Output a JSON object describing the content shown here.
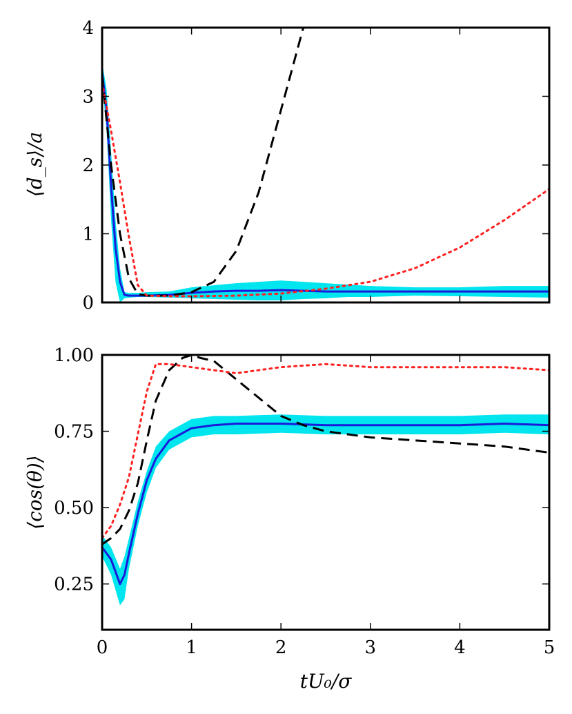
{
  "chart_data": [
    {
      "type": "line",
      "panel": "top",
      "title": "",
      "xlabel": "",
      "ylabel": "⟨d_s⟩/a",
      "xlim": [
        0,
        5
      ],
      "ylim": [
        0,
        4
      ],
      "xticks": [
        0,
        1,
        2,
        3,
        4,
        5
      ],
      "xtick_labels_visible": false,
      "yticks": [
        0,
        1,
        2,
        3,
        4
      ],
      "ytick_labels": [
        "0",
        "1",
        "2",
        "3",
        "4"
      ],
      "band": {
        "name": "spread",
        "color": "#00e5ee",
        "x": [
          0,
          0.05,
          0.1,
          0.15,
          0.2,
          0.25,
          0.3,
          0.4,
          0.5,
          0.75,
          1.0,
          1.25,
          1.5,
          1.75,
          2.0,
          2.25,
          2.5,
          2.75,
          3.0,
          3.5,
          4.0,
          4.5,
          5.0
        ],
        "lower": [
          3.2,
          2.5,
          1.2,
          0.3,
          0.0,
          0.06,
          0.07,
          0.08,
          0.08,
          0.07,
          0.06,
          0.05,
          0.04,
          0.03,
          0.03,
          0.05,
          0.06,
          0.08,
          0.08,
          0.1,
          0.09,
          0.08,
          0.07
        ],
        "upper": [
          3.5,
          3.1,
          2.2,
          1.2,
          0.5,
          0.15,
          0.14,
          0.14,
          0.15,
          0.16,
          0.22,
          0.25,
          0.28,
          0.3,
          0.32,
          0.3,
          0.28,
          0.26,
          0.24,
          0.22,
          0.22,
          0.24,
          0.24
        ]
      },
      "series": [
        {
          "name": "mean",
          "color": "#1a1adb",
          "style": "solid",
          "x": [
            0,
            0.05,
            0.1,
            0.15,
            0.2,
            0.25,
            0.3,
            0.5,
            0.75,
            1.0,
            1.25,
            1.5,
            1.75,
            2.0,
            2.25,
            2.5,
            2.75,
            3.0,
            3.5,
            4.0,
            4.5,
            5.0
          ],
          "values": [
            3.35,
            2.8,
            1.7,
            0.8,
            0.3,
            0.11,
            0.1,
            0.1,
            0.11,
            0.14,
            0.16,
            0.17,
            0.17,
            0.18,
            0.17,
            0.16,
            0.16,
            0.16,
            0.16,
            0.16,
            0.16,
            0.16
          ]
        },
        {
          "name": "dashed",
          "color": "#000000",
          "style": "dashed",
          "x": [
            0,
            0.1,
            0.2,
            0.3,
            0.4,
            0.5,
            0.75,
            1.0,
            1.25,
            1.5,
            1.75,
            2.0,
            2.25
          ],
          "values": [
            3.3,
            2.0,
            1.0,
            0.35,
            0.12,
            0.1,
            0.1,
            0.15,
            0.3,
            0.75,
            1.6,
            2.8,
            4.0
          ]
        },
        {
          "name": "dotted",
          "color": "#ff2020",
          "style": "dotted",
          "x": [
            0,
            0.1,
            0.2,
            0.3,
            0.4,
            0.5,
            0.75,
            1.0,
            1.5,
            2.0,
            2.5,
            3.0,
            3.5,
            4.0,
            4.5,
            5.0
          ],
          "values": [
            3.2,
            2.5,
            1.75,
            0.95,
            0.25,
            0.1,
            0.09,
            0.09,
            0.1,
            0.13,
            0.2,
            0.3,
            0.5,
            0.8,
            1.2,
            1.65
          ]
        }
      ]
    },
    {
      "type": "line",
      "panel": "bottom",
      "title": "",
      "xlabel": "tU₀/σ",
      "ylabel": "⟨cos(θ)⟩",
      "xlim": [
        0,
        5
      ],
      "ylim": [
        0.1,
        1.0
      ],
      "xticks": [
        0,
        1,
        2,
        3,
        4,
        5
      ],
      "xtick_labels": [
        "0",
        "1",
        "2",
        "3",
        "4",
        "5"
      ],
      "yticks": [
        0.25,
        0.5,
        0.75,
        1.0
      ],
      "ytick_labels": [
        "0.25",
        "0.50",
        "0.75",
        "1.00"
      ],
      "band": {
        "name": "spread",
        "color": "#00e5ee",
        "x": [
          0,
          0.1,
          0.2,
          0.25,
          0.3,
          0.4,
          0.5,
          0.6,
          0.75,
          1.0,
          1.25,
          1.5,
          2.0,
          2.5,
          3.0,
          3.5,
          4.0,
          4.5,
          5.0
        ],
        "lower": [
          0.34,
          0.28,
          0.18,
          0.2,
          0.3,
          0.44,
          0.55,
          0.63,
          0.69,
          0.73,
          0.74,
          0.74,
          0.745,
          0.74,
          0.74,
          0.74,
          0.74,
          0.745,
          0.74
        ],
        "upper": [
          0.41,
          0.37,
          0.3,
          0.34,
          0.4,
          0.52,
          0.62,
          0.7,
          0.75,
          0.79,
          0.8,
          0.8,
          0.805,
          0.8,
          0.8,
          0.8,
          0.8,
          0.805,
          0.805
        ]
      },
      "series": [
        {
          "name": "mean",
          "color": "#1a1adb",
          "style": "solid",
          "x": [
            0,
            0.1,
            0.2,
            0.25,
            0.3,
            0.4,
            0.5,
            0.6,
            0.75,
            1.0,
            1.25,
            1.5,
            2.0,
            2.5,
            3.0,
            3.5,
            4.0,
            4.5,
            5.0
          ],
          "values": [
            0.37,
            0.33,
            0.25,
            0.28,
            0.35,
            0.48,
            0.59,
            0.66,
            0.72,
            0.76,
            0.77,
            0.775,
            0.775,
            0.77,
            0.77,
            0.77,
            0.77,
            0.775,
            0.77
          ]
        },
        {
          "name": "dashed",
          "color": "#000000",
          "style": "dashed",
          "x": [
            0,
            0.1,
            0.2,
            0.3,
            0.4,
            0.5,
            0.6,
            0.75,
            0.9,
            1.0,
            1.1,
            1.25,
            1.5,
            1.75,
            2.0,
            2.25,
            2.5,
            2.75,
            3.0,
            3.5,
            4.0,
            4.5,
            4.75,
            5.0
          ],
          "values": [
            0.38,
            0.4,
            0.43,
            0.49,
            0.58,
            0.72,
            0.85,
            0.95,
            0.99,
            1.0,
            0.99,
            0.98,
            0.92,
            0.86,
            0.8,
            0.77,
            0.75,
            0.74,
            0.73,
            0.72,
            0.71,
            0.7,
            0.69,
            0.68
          ]
        },
        {
          "name": "dotted",
          "color": "#ff2020",
          "style": "dotted",
          "x": [
            0,
            0.1,
            0.2,
            0.3,
            0.4,
            0.5,
            0.6,
            0.75,
            1.0,
            1.5,
            2.0,
            2.5,
            3.0,
            3.5,
            4.0,
            4.5,
            5.0
          ],
          "values": [
            0.4,
            0.44,
            0.51,
            0.6,
            0.74,
            0.88,
            0.97,
            0.97,
            0.96,
            0.94,
            0.96,
            0.97,
            0.96,
            0.96,
            0.96,
            0.96,
            0.95
          ]
        }
      ]
    }
  ]
}
